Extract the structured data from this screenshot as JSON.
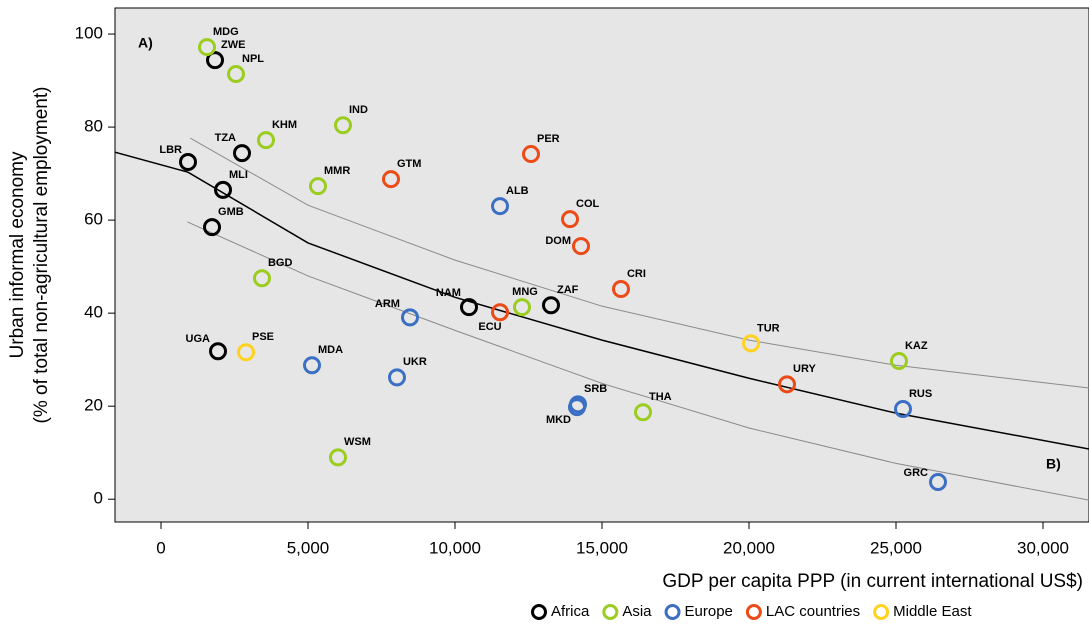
{
  "chart_data": {
    "type": "scatter",
    "annotations": [
      "A)",
      "B)"
    ],
    "xlabel": "GDP per capita  PPP (in current international US$)",
    "ylabel": [
      "Urban informal economy",
      "(% of total non-agricultural employment)"
    ],
    "xlim": [
      -1565,
      31565
    ],
    "ylim": [
      -4.9,
      105.6
    ],
    "xticks": [
      0,
      {
        "value": 5000,
        "label": "5,000"
      },
      {
        "value": 10000,
        "label": "10,000"
      },
      {
        "value": 15000,
        "label": "15,000"
      },
      {
        "value": 20000,
        "label": "20,000"
      },
      {
        "value": 25000,
        "label": "25,000"
      },
      {
        "value": 30000,
        "label": "30,000"
      }
    ],
    "yticks": [
      0,
      20,
      40,
      60,
      80,
      100
    ],
    "series": [
      {
        "name": "Africa",
        "color": "#000000",
        "labels": [
          "ZWE",
          "LBR",
          "TZA",
          "MLI",
          "GMB",
          "NAM",
          "ZAF",
          "UGA"
        ],
        "x": [
          1837,
          918,
          2755,
          2109,
          1735,
          10476,
          13265,
          1939
        ],
        "values": [
          94.4,
          72.5,
          74.4,
          66.5,
          58.5,
          41.3,
          41.7,
          31.8
        ]
      },
      {
        "name": "Asia",
        "color": "#9acd1e",
        "labels": [
          "MDG",
          "NPL",
          "KHM",
          "IND",
          "MMR",
          "BGD",
          "MNG",
          "THA",
          "WSM",
          "KAZ"
        ],
        "x": [
          1565,
          2551,
          3571,
          6190,
          5340,
          3435,
          12279,
          16395,
          6020,
          25102
        ],
        "values": [
          97.2,
          91.4,
          77.2,
          80.4,
          67.3,
          47.5,
          41.3,
          18.7,
          9.0,
          29.7
        ]
      },
      {
        "name": "Europe",
        "color": "#3b6fc4",
        "labels": [
          "ALB",
          "ARM",
          "MDA",
          "UKR",
          "SRB",
          "MKD",
          "RUS",
          "GRC"
        ],
        "x": [
          11531,
          8469,
          5136,
          8027,
          14184,
          14150,
          25238,
          26429
        ],
        "values": [
          63.0,
          39.1,
          28.8,
          26.2,
          20.4,
          19.8,
          19.4,
          3.7
        ]
      },
      {
        "name": "LAC countries",
        "color": "#ec4a17",
        "labels": [
          "GTM",
          "PER",
          "COL",
          "DOM",
          "CRI",
          "ECU",
          "URY"
        ],
        "x": [
          7823,
          12585,
          13912,
          14286,
          15646,
          11531,
          21293
        ],
        "values": [
          68.8,
          74.2,
          60.2,
          54.4,
          45.2,
          40.2,
          24.7
        ]
      },
      {
        "name": "Middle East",
        "color": "#ffd21f",
        "labels": [
          "TUR",
          "PSE"
        ],
        "x": [
          20068,
          2891
        ],
        "values": [
          33.5,
          31.6
        ]
      }
    ],
    "fit": {
      "color": "#000000",
      "x": [
        -1565,
        918,
        5000,
        10000,
        15000,
        20000,
        25000,
        31565
      ],
      "values": [
        74.6,
        70.3,
        55.1,
        43.4,
        34.2,
        26.0,
        18.5,
        10.8
      ]
    },
    "fit_upper": {
      "color": "#8a8a8a",
      "x": [
        1000,
        5000,
        10000,
        15000,
        20000,
        25000,
        31565
      ],
      "values": [
        77.6,
        63.2,
        51.4,
        41.5,
        34.2,
        28.8,
        23.9
      ]
    },
    "fit_lower": {
      "color": "#8a8a8a",
      "x": [
        900,
        5000,
        10000,
        15000,
        20000,
        25000,
        31565
      ],
      "values": [
        59.6,
        48.0,
        36.3,
        24.9,
        15.3,
        7.7,
        -0.2
      ]
    }
  }
}
